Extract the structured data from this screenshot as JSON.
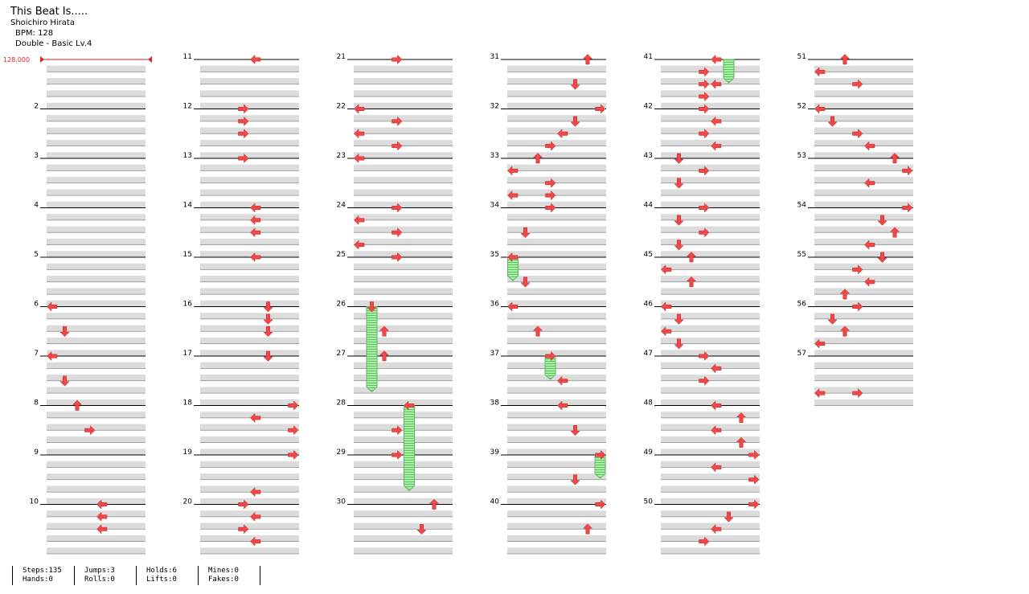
{
  "song": {
    "title": "This Beat Is.....",
    "artist": "Shoichiro Hirata",
    "bpm_text": "BPM: 128",
    "chart_text": "Double - Basic  Lv.4"
  },
  "bpm_marker": "128.000",
  "colors": {
    "arrow": "#f04848",
    "hold": "#90e890",
    "band": "#dcdcdc",
    "marker": "#e02020"
  },
  "measures": [
    {
      "num": "",
      "notes": []
    },
    {
      "num": "2",
      "notes": []
    },
    {
      "num": "3",
      "notes": []
    },
    {
      "num": "4",
      "notes": []
    },
    {
      "num": "5",
      "notes": []
    },
    {
      "num": "6",
      "notes": [
        [
          0,
          0,
          "L"
        ],
        [
          2,
          1,
          "D"
        ]
      ]
    },
    {
      "num": "7",
      "notes": [
        [
          0,
          0,
          "L"
        ],
        [
          2,
          1,
          "D"
        ]
      ]
    },
    {
      "num": "8",
      "notes": [
        [
          0,
          2,
          "U"
        ],
        [
          2,
          3,
          "R"
        ]
      ]
    },
    {
      "num": "9",
      "notes": []
    },
    {
      "num": "10",
      "notes": [
        [
          0,
          4,
          "L"
        ],
        [
          1,
          4,
          "L"
        ],
        [
          2,
          4,
          "L"
        ]
      ]
    },
    {
      "num": "11",
      "notes": [
        [
          0,
          4,
          "L"
        ]
      ]
    },
    {
      "num": "12",
      "notes": [
        [
          0,
          3,
          "R"
        ],
        [
          1,
          3,
          "R"
        ],
        [
          2,
          3,
          "R"
        ]
      ]
    },
    {
      "num": "13",
      "notes": [
        [
          0,
          3,
          "R"
        ]
      ]
    },
    {
      "num": "14",
      "notes": [
        [
          0,
          4,
          "L"
        ],
        [
          1,
          4,
          "L"
        ],
        [
          2,
          4,
          "L"
        ]
      ]
    },
    {
      "num": "15",
      "notes": [
        [
          0,
          4,
          "L"
        ]
      ]
    },
    {
      "num": "16",
      "notes": [
        [
          0,
          5,
          "D"
        ],
        [
          1,
          5,
          "D"
        ],
        [
          2,
          5,
          "D"
        ]
      ]
    },
    {
      "num": "17",
      "notes": [
        [
          0,
          5,
          "D"
        ]
      ]
    },
    {
      "num": "18",
      "notes": [
        [
          0,
          7,
          "R"
        ],
        [
          1,
          4,
          "L"
        ],
        [
          2,
          7,
          "R"
        ]
      ]
    },
    {
      "num": "19",
      "notes": [
        [
          0,
          7,
          "R"
        ],
        [
          3,
          4,
          "L"
        ]
      ]
    },
    {
      "num": "20",
      "notes": [
        [
          0,
          3,
          "R"
        ],
        [
          1,
          4,
          "L"
        ],
        [
          2,
          3,
          "R"
        ],
        [
          3,
          4,
          "L"
        ]
      ]
    },
    {
      "num": "21",
      "notes": [
        [
          0,
          3,
          "R"
        ]
      ]
    },
    {
      "num": "22",
      "notes": [
        [
          0,
          0,
          "L"
        ],
        [
          1,
          3,
          "R"
        ],
        [
          2,
          0,
          "L"
        ],
        [
          3,
          3,
          "R"
        ]
      ]
    },
    {
      "num": "23",
      "notes": [
        [
          0,
          0,
          "L"
        ]
      ]
    },
    {
      "num": "24",
      "notes": [
        [
          0,
          3,
          "R"
        ],
        [
          1,
          0,
          "L"
        ],
        [
          2,
          3,
          "R"
        ],
        [
          3,
          0,
          "L"
        ]
      ]
    },
    {
      "num": "25",
      "notes": [
        [
          0,
          3,
          "R"
        ]
      ]
    },
    {
      "num": "26",
      "notes": [
        [
          0,
          1,
          "D"
        ],
        [
          2,
          2,
          "U"
        ]
      ]
    },
    {
      "num": "27",
      "notes": [
        [
          0,
          2,
          "U"
        ]
      ]
    },
    {
      "num": "28",
      "notes": [
        [
          0,
          4,
          "L"
        ],
        [
          2,
          3,
          "R"
        ]
      ]
    },
    {
      "num": "29",
      "notes": [
        [
          0,
          3,
          "R"
        ]
      ]
    },
    {
      "num": "30",
      "notes": [
        [
          0,
          6,
          "U"
        ],
        [
          2,
          5,
          "D"
        ]
      ]
    },
    {
      "num": "31",
      "notes": [
        [
          0,
          6,
          "U"
        ],
        [
          2,
          5,
          "D"
        ]
      ]
    },
    {
      "num": "32",
      "notes": [
        [
          0,
          7,
          "R"
        ],
        [
          1,
          5,
          "D"
        ],
        [
          2,
          4,
          "L"
        ],
        [
          3,
          3,
          "R"
        ]
      ]
    },
    {
      "num": "33",
      "notes": [
        [
          0,
          2,
          "U"
        ],
        [
          1,
          0,
          "L"
        ],
        [
          2,
          3,
          "R"
        ],
        [
          3,
          0,
          "L"
        ],
        [
          3,
          3,
          "R"
        ]
      ]
    },
    {
      "num": "34",
      "notes": [
        [
          0,
          3,
          "R"
        ],
        [
          2,
          1,
          "D"
        ]
      ]
    },
    {
      "num": "35",
      "notes": [
        [
          0,
          0,
          "L"
        ],
        [
          2,
          1,
          "D"
        ]
      ]
    },
    {
      "num": "36",
      "notes": [
        [
          0,
          0,
          "L"
        ],
        [
          2,
          2,
          "U"
        ]
      ]
    },
    {
      "num": "37",
      "notes": [
        [
          0,
          3,
          "R"
        ],
        [
          2,
          4,
          "L"
        ]
      ]
    },
    {
      "num": "38",
      "notes": [
        [
          0,
          4,
          "L"
        ],
        [
          2,
          5,
          "D"
        ]
      ]
    },
    {
      "num": "39",
      "notes": [
        [
          0,
          7,
          "R"
        ],
        [
          2,
          5,
          "D"
        ]
      ]
    },
    {
      "num": "40",
      "notes": [
        [
          0,
          7,
          "R"
        ],
        [
          2,
          6,
          "U"
        ]
      ]
    },
    {
      "num": "41",
      "notes": [
        [
          0,
          4,
          "L"
        ],
        [
          1,
          3,
          "R"
        ],
        [
          2,
          3,
          "R"
        ],
        [
          2,
          4,
          "L"
        ],
        [
          3,
          3,
          "R"
        ]
      ]
    },
    {
      "num": "42",
      "notes": [
        [
          0,
          3,
          "R"
        ],
        [
          1,
          4,
          "L"
        ],
        [
          2,
          3,
          "R"
        ],
        [
          3,
          4,
          "L"
        ]
      ]
    },
    {
      "num": "43",
      "notes": [
        [
          0,
          1,
          "D"
        ],
        [
          1,
          3,
          "R"
        ],
        [
          2,
          1,
          "D"
        ]
      ]
    },
    {
      "num": "44",
      "notes": [
        [
          0,
          3,
          "R"
        ],
        [
          1,
          1,
          "D"
        ],
        [
          2,
          3,
          "R"
        ],
        [
          3,
          1,
          "D"
        ]
      ]
    },
    {
      "num": "45",
      "notes": [
        [
          0,
          2,
          "U"
        ],
        [
          1,
          0,
          "L"
        ],
        [
          2,
          2,
          "U"
        ]
      ]
    },
    {
      "num": "46",
      "notes": [
        [
          0,
          0,
          "L"
        ],
        [
          1,
          1,
          "D"
        ],
        [
          2,
          0,
          "L"
        ],
        [
          3,
          1,
          "D"
        ]
      ]
    },
    {
      "num": "47",
      "notes": [
        [
          0,
          3,
          "R"
        ],
        [
          1,
          4,
          "L"
        ],
        [
          2,
          3,
          "R"
        ]
      ]
    },
    {
      "num": "48",
      "notes": [
        [
          0,
          4,
          "L"
        ],
        [
          1,
          6,
          "U"
        ],
        [
          2,
          4,
          "L"
        ],
        [
          3,
          6,
          "U"
        ]
      ]
    },
    {
      "num": "49",
      "notes": [
        [
          0,
          7,
          "R"
        ],
        [
          1,
          4,
          "L"
        ],
        [
          2,
          7,
          "R"
        ]
      ]
    },
    {
      "num": "50",
      "notes": [
        [
          0,
          7,
          "R"
        ],
        [
          1,
          5,
          "D"
        ],
        [
          2,
          4,
          "L"
        ],
        [
          3,
          3,
          "R"
        ]
      ]
    },
    {
      "num": "51",
      "notes": [
        [
          0,
          2,
          "U"
        ],
        [
          1,
          0,
          "L"
        ],
        [
          2,
          3,
          "R"
        ]
      ]
    },
    {
      "num": "52",
      "notes": [
        [
          0,
          0,
          "L"
        ],
        [
          1,
          1,
          "D"
        ],
        [
          2,
          3,
          "R"
        ],
        [
          3,
          4,
          "L"
        ]
      ]
    },
    {
      "num": "53",
      "notes": [
        [
          0,
          6,
          "U"
        ],
        [
          1,
          7,
          "R"
        ],
        [
          2,
          4,
          "L"
        ]
      ]
    },
    {
      "num": "54",
      "notes": [
        [
          0,
          7,
          "R"
        ],
        [
          1,
          5,
          "D"
        ],
        [
          2,
          6,
          "U"
        ],
        [
          3,
          4,
          "L"
        ]
      ]
    },
    {
      "num": "55",
      "notes": [
        [
          0,
          5,
          "D"
        ],
        [
          1,
          3,
          "R"
        ],
        [
          2,
          4,
          "L"
        ],
        [
          3,
          2,
          "U"
        ]
      ]
    },
    {
      "num": "56",
      "notes": [
        [
          0,
          3,
          "R"
        ],
        [
          1,
          1,
          "D"
        ],
        [
          2,
          2,
          "U"
        ],
        [
          3,
          0,
          "L"
        ]
      ]
    },
    {
      "num": "57",
      "notes": [
        [
          3,
          0,
          "L"
        ],
        [
          3,
          3,
          "R"
        ]
      ]
    }
  ],
  "holds": [
    {
      "measure": "26",
      "start_beat": 0,
      "length_beats": 6.5,
      "lane": 1
    },
    {
      "measure": "28",
      "start_beat": 0,
      "length_beats": 6.5,
      "lane": 4
    },
    {
      "measure": "35",
      "start_beat": 0,
      "length_beats": 1.5,
      "lane": 0
    },
    {
      "measure": "37",
      "start_beat": 0,
      "length_beats": 1.5,
      "lane": 3
    },
    {
      "measure": "39",
      "start_beat": 0,
      "length_beats": 1.5,
      "lane": 7
    },
    {
      "measure": "41",
      "start_beat": 0,
      "length_beats": 1.5,
      "lane": 5
    }
  ],
  "stats": {
    "steps": "Steps:135",
    "hands": "Hands:0",
    "jumps": "Jumps:3",
    "rolls": "Rolls:0",
    "holds": "Holds:6",
    "lifts": "Lifts:0",
    "mines": "Mines:0",
    "fakes": "Fakes:0"
  }
}
